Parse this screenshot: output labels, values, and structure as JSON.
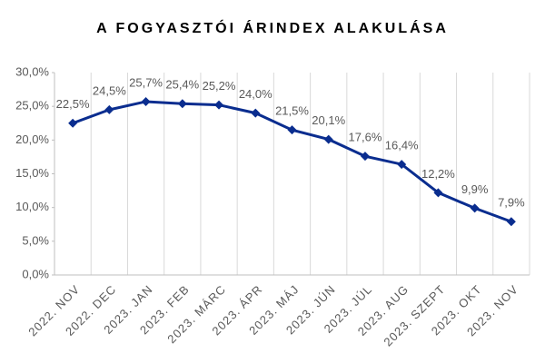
{
  "chart_data": {
    "type": "line",
    "title": "A FOGYASZTÓI ÁRINDEX ALAKULÁSA",
    "categories": [
      "2022. NOV",
      "2022. DEC",
      "2023. JAN",
      "2023. FEB",
      "2023. MÁRC",
      "2023. ÁPR",
      "2023. MÁJ",
      "2023. JÚN",
      "2023. JÚL",
      "2023. AUG",
      "2023. SZEPT",
      "2023. OKT",
      "2023. NOV"
    ],
    "values": [
      22.5,
      24.5,
      25.7,
      25.4,
      25.2,
      24.0,
      21.5,
      20.1,
      17.6,
      16.4,
      12.2,
      9.9,
      7.9
    ],
    "value_labels": [
      "22,5%",
      "24,5%",
      "25,7%",
      "25,4%",
      "25,2%",
      "24,0%",
      "21,5%",
      "20,1%",
      "17,6%",
      "16,4%",
      "12,2%",
      "9,9%",
      "7,9%"
    ],
    "color": "#0a2d8f",
    "ylim": [
      0,
      30
    ],
    "yticks": [
      {
        "value": 0,
        "label": "0,0%"
      },
      {
        "value": 5,
        "label": "5,0%"
      },
      {
        "value": 10,
        "label": "10,0%"
      },
      {
        "value": 15,
        "label": "15,0%"
      },
      {
        "value": 20,
        "label": "20,0%"
      },
      {
        "value": 25,
        "label": "25,0%"
      },
      {
        "value": 30,
        "label": "30,0%"
      }
    ],
    "grid": true
  }
}
